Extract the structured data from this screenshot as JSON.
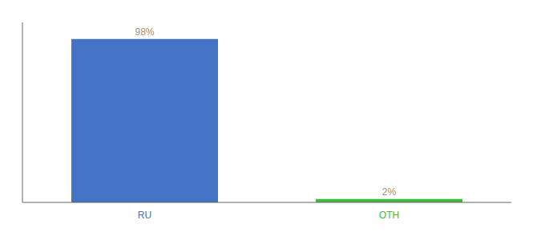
{
  "chart_data": {
    "type": "bar",
    "categories": [
      "RU",
      "OTH"
    ],
    "values": [
      98,
      2
    ],
    "value_labels": [
      "98%",
      "2%"
    ],
    "colors": [
      "#4472c4",
      "#3dbb3d"
    ],
    "ylim": [
      0,
      108
    ],
    "data_labels": true,
    "tick_labels": "x",
    "grid": false
  }
}
